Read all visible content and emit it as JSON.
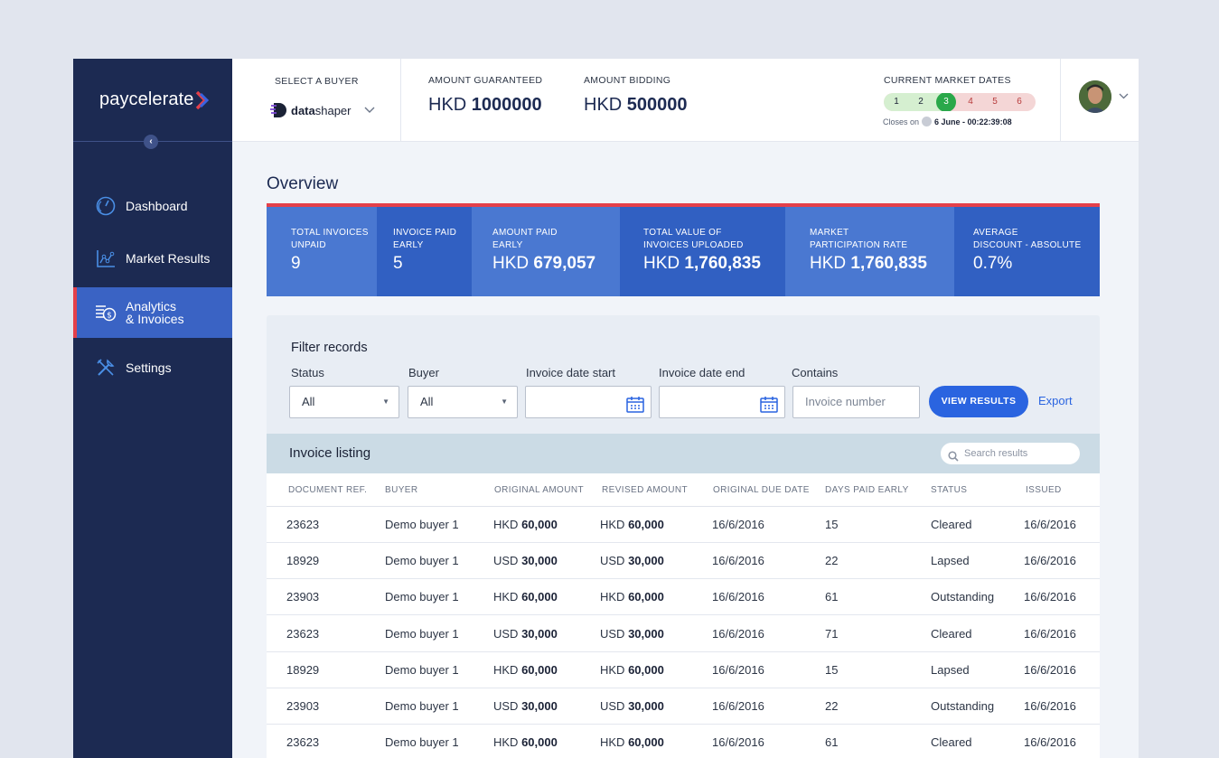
{
  "brand": {
    "name": "paycelerate"
  },
  "sidebar": {
    "items": [
      {
        "label": "Dashboard",
        "icon": "dashboard-gauge-icon"
      },
      {
        "label": "Market Results",
        "icon": "line-chart-icon"
      },
      {
        "label_line1": "Analytics",
        "label_line2": "& Invoices",
        "icon": "analytics-invoices-icon",
        "active": true
      },
      {
        "label": "Settings",
        "icon": "tools-icon"
      }
    ]
  },
  "topbar": {
    "select_buyer_label": "SELECT A BUYER",
    "buyer_logo_bold": "data",
    "buyer_logo_light": "shaper",
    "amount_guaranteed_label": "AMOUNT GUARANTEED",
    "amount_guaranteed_currency": "HKD",
    "amount_guaranteed_value": "1000000",
    "amount_bidding_label": "AMOUNT BIDDING",
    "amount_bidding_currency": "HKD",
    "amount_bidding_value": "500000",
    "market_dates_label": "CURRENT MARKET DATES",
    "market_dates": [
      "1",
      "2",
      "3",
      "4",
      "5",
      "6"
    ],
    "current_market_date": "3",
    "closes_prefix": "Closes on",
    "closes_value": "6 June - 00:22:39:08"
  },
  "overview": {
    "title": "Overview",
    "stats": [
      {
        "label_line1": "TOTAL INVOICES",
        "label_line2": "UNPAID",
        "prefix": "",
        "value": "9"
      },
      {
        "label_line1": "INVOICE PAID",
        "label_line2": "EARLY",
        "prefix": "",
        "value": "5"
      },
      {
        "label_line1": "AMOUNT PAID",
        "label_line2": "EARLY",
        "prefix": "HKD",
        "value": "679,057"
      },
      {
        "label_line1": "TOTAL VALUE OF",
        "label_line2": "INVOICES UPLOADED",
        "prefix": "HKD",
        "value": "1,760,835"
      },
      {
        "label_line1": "MARKET",
        "label_line2": "PARTICIPATION RATE",
        "prefix": "HKD",
        "value": "1,760,835"
      },
      {
        "label_line1": "AVERAGE",
        "label_line2": "DISCOUNT - ABSOLUTE",
        "prefix": "",
        "value": "0.7%"
      }
    ],
    "colors": [
      "#4a78d1",
      "#3160c2",
      "#4a78d1",
      "#3160c2",
      "#4a78d1",
      "#3160c2"
    ]
  },
  "filter": {
    "title": "Filter records",
    "status_label": "Status",
    "status_value": "All",
    "buyer_label": "Buyer",
    "buyer_value": "All",
    "date_start_label": "Invoice date start",
    "date_end_label": "Invoice date end",
    "contains_label": "Contains",
    "contains_placeholder": "Invoice number",
    "view_button": "VIEW RESULTS",
    "export_link": "Export"
  },
  "listing": {
    "title": "Invoice listing",
    "search_placeholder": "Search results",
    "columns": [
      "DOCUMENT REF.",
      "BUYER",
      "ORIGINAL AMOUNT",
      "REVISED AMOUNT",
      "ORIGINAL DUE DATE",
      "DAYS PAID EARLY",
      "STATUS",
      "ISSUED"
    ],
    "rows": [
      {
        "ref": "23623",
        "buyer": "Demo buyer 1",
        "orig_cur": "HKD",
        "orig_amt": "60,000",
        "rev_cur": "HKD",
        "rev_amt": "60,000",
        "due": "16/6/2016",
        "days": "15",
        "status": "Cleared",
        "issued": "16/6/2016"
      },
      {
        "ref": "18929",
        "buyer": "Demo buyer 1",
        "orig_cur": "USD",
        "orig_amt": "30,000",
        "rev_cur": "USD",
        "rev_amt": "30,000",
        "due": "16/6/2016",
        "days": "22",
        "status": "Lapsed",
        "issued": "16/6/2016"
      },
      {
        "ref": "23903",
        "buyer": "Demo buyer 1",
        "orig_cur": "HKD",
        "orig_amt": "60,000",
        "rev_cur": "HKD",
        "rev_amt": "60,000",
        "due": "16/6/2016",
        "days": "61",
        "status": "Outstanding",
        "issued": "16/6/2016"
      },
      {
        "ref": "23623",
        "buyer": "Demo buyer 1",
        "orig_cur": "USD",
        "orig_amt": "30,000",
        "rev_cur": "USD",
        "rev_amt": "30,000",
        "due": "16/6/2016",
        "days": "71",
        "status": "Cleared",
        "issued": "16/6/2016"
      },
      {
        "ref": "18929",
        "buyer": "Demo buyer 1",
        "orig_cur": "HKD",
        "orig_amt": "60,000",
        "rev_cur": "HKD",
        "rev_amt": "60,000",
        "due": "16/6/2016",
        "days": "15",
        "status": "Lapsed",
        "issued": "16/6/2016"
      },
      {
        "ref": "23903",
        "buyer": "Demo buyer 1",
        "orig_cur": "USD",
        "orig_amt": "30,000",
        "rev_cur": "USD",
        "rev_amt": "30,000",
        "due": "16/6/2016",
        "days": "22",
        "status": "Outstanding",
        "issued": "16/6/2016"
      },
      {
        "ref": "23623",
        "buyer": "Demo buyer 1",
        "orig_cur": "HKD",
        "orig_amt": "60,000",
        "rev_cur": "HKD",
        "rev_amt": "60,000",
        "due": "16/6/2016",
        "days": "61",
        "status": "Cleared",
        "issued": "16/6/2016"
      }
    ]
  }
}
